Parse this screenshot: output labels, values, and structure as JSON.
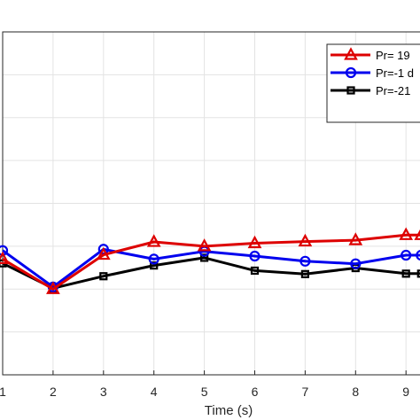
{
  "chart_data": {
    "type": "line",
    "xlabel": "Time (s)",
    "ylabel": "",
    "xlim": [
      1,
      9.3
    ],
    "ylim": [
      0,
      8
    ],
    "grid": true,
    "x_ticks": [
      1,
      2,
      3,
      4,
      5,
      6,
      7,
      8,
      9
    ],
    "legend_position": "top-right",
    "series": [
      {
        "name": "Pr= 19",
        "color": "#dd0000",
        "marker": "triangle",
        "x": [
          1,
          2,
          3,
          4,
          5,
          6,
          7,
          8,
          9,
          9.3
        ],
        "y": [
          2.7,
          2.0,
          2.8,
          3.1,
          3.0,
          3.07,
          3.11,
          3.14,
          3.26,
          3.26
        ]
      },
      {
        "name": "Pr=-1 d",
        "color": "#0000ee",
        "marker": "circle",
        "x": [
          1,
          2,
          3,
          4,
          5,
          6,
          7,
          8,
          9,
          9.3
        ],
        "y": [
          2.9,
          2.05,
          2.93,
          2.7,
          2.88,
          2.77,
          2.65,
          2.59,
          2.79,
          2.79
        ]
      },
      {
        "name": "Pr=-21",
        "color": "#000000",
        "marker": "square",
        "x": [
          1,
          2,
          3,
          4,
          5,
          6,
          7,
          8,
          9,
          9.3
        ],
        "y": [
          2.6,
          2.02,
          2.3,
          2.55,
          2.73,
          2.43,
          2.35,
          2.49,
          2.36,
          2.36
        ]
      }
    ]
  }
}
